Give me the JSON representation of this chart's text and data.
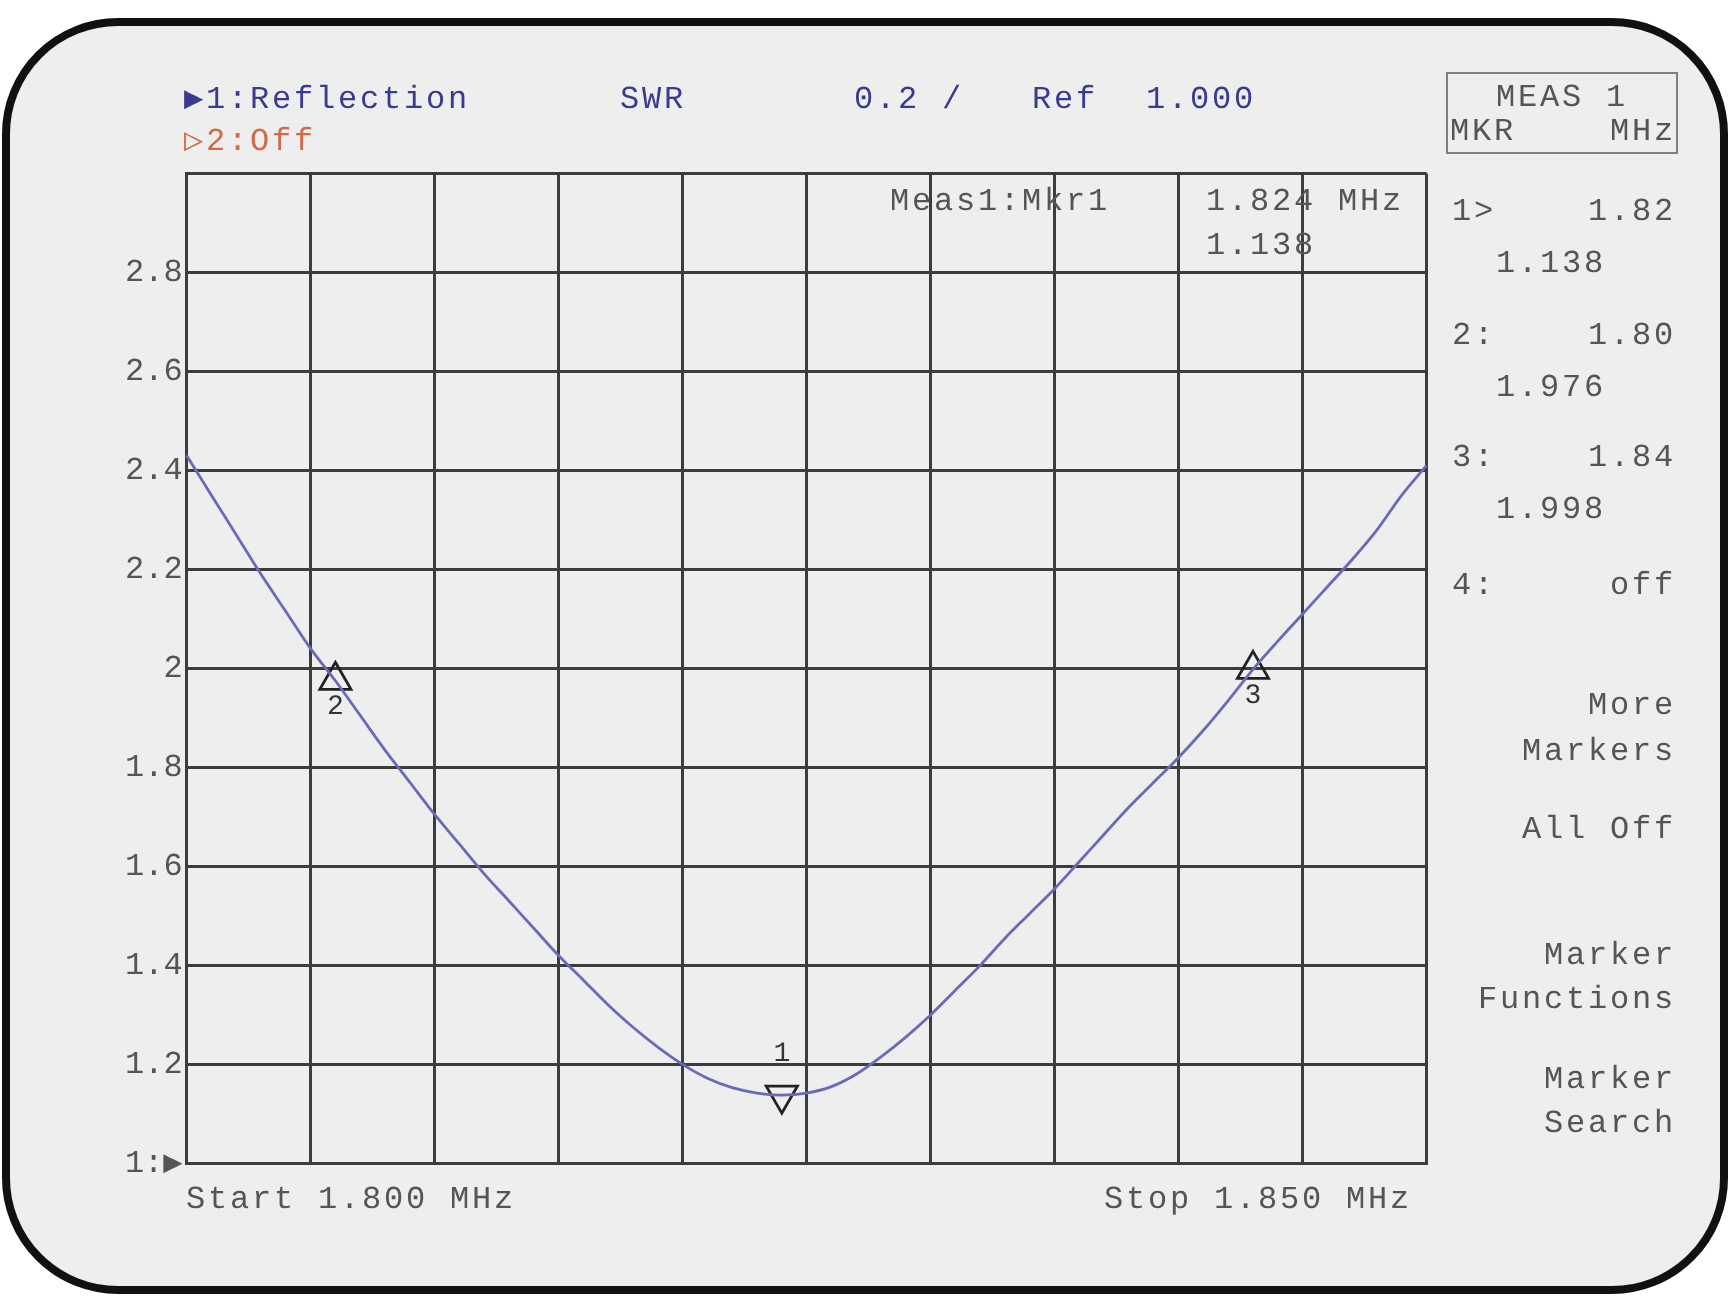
{
  "chart_data": {
    "type": "line",
    "categories": [
      null,
      null,
      null,
      null,
      null,
      null,
      null,
      null,
      null,
      null,
      null,
      null,
      null,
      null,
      null,
      null,
      null,
      null,
      null,
      null,
      null,
      null,
      null,
      null,
      null,
      null,
      null,
      null,
      null,
      null,
      null,
      null,
      null,
      null,
      null,
      null,
      null,
      null,
      null,
      null,
      null,
      null,
      null,
      null,
      null,
      null,
      null,
      null,
      null,
      null,
      null
    ],
    "series": [
      {
        "color": "#6a6ab8",
        "values": [
          2.43,
          2.35,
          2.27,
          2.19,
          2.115,
          2.04,
          1.975,
          1.905,
          1.835,
          1.77,
          1.705,
          1.645,
          1.585,
          1.53,
          1.475,
          1.42,
          1.37,
          1.32,
          1.275,
          1.235,
          1.2,
          1.172,
          1.153,
          1.142,
          1.138,
          1.142,
          1.155,
          1.18,
          1.215,
          1.255,
          1.3,
          1.35,
          1.4,
          1.455,
          1.505,
          1.555,
          1.61,
          1.665,
          1.72,
          1.77,
          1.82,
          1.875,
          1.935,
          1.998,
          2.055,
          2.11,
          2.165,
          2.22,
          2.28,
          2.35,
          2.41
        ]
      },
      {
        "name": "1",
        "type": "scatter",
        "marker": "triangle",
        "color": "#222222",
        "values": [
          null,
          null,
          null,
          null,
          null,
          null,
          null,
          null,
          null,
          null,
          null,
          null,
          null,
          null,
          null,
          null,
          null,
          null,
          null,
          null,
          null,
          null,
          null,
          null,
          1.138,
          null,
          null,
          null,
          null,
          null,
          null,
          null,
          null,
          null,
          null,
          null,
          null,
          null,
          null,
          null,
          null,
          null,
          null,
          null,
          null,
          null,
          null,
          null,
          null,
          null,
          null
        ]
      },
      {
        "name": "2",
        "type": "scatter",
        "marker": "triangle",
        "color": "#222222",
        "values": [
          null,
          null,
          null,
          null,
          null,
          null,
          1.976,
          null,
          null,
          null,
          null,
          null,
          null,
          null,
          null,
          null,
          null,
          null,
          null,
          null,
          null,
          null,
          null,
          null,
          null,
          null,
          null,
          null,
          null,
          null,
          null,
          null,
          null,
          null,
          null,
          null,
          null,
          null,
          null,
          null,
          null,
          null,
          null,
          null,
          null,
          null,
          null,
          null,
          null,
          null,
          null
        ]
      },
      {
        "name": "3",
        "type": "scatter",
        "marker": "triangle",
        "color": "#222222",
        "values": [
          null,
          null,
          null,
          null,
          null,
          null,
          null,
          null,
          null,
          null,
          null,
          null,
          null,
          null,
          null,
          null,
          null,
          null,
          null,
          null,
          null,
          null,
          null,
          null,
          null,
          null,
          null,
          null,
          null,
          null,
          null,
          null,
          null,
          null,
          null,
          null,
          null,
          null,
          null,
          null,
          null,
          null,
          null,
          1.998,
          null,
          null,
          null,
          null,
          null,
          null,
          null
        ]
      }
    ],
    "ylim": [
      1,
      3
    ],
    "yticks": [
      {
        "value": 1,
        "label": "1:▶"
      },
      1.2,
      1.4,
      1.6,
      1.8,
      2,
      2.2,
      2.4,
      2.6,
      2.8,
      {
        "value": 3,
        "label": null
      }
    ],
    "grid": true,
    "annotations": [
      "▶1:Reflection",
      "SWR",
      "0.2 /",
      "Ref 1.000",
      "▷2:Off",
      "Meas1:Mkr1",
      "1.824 MHz",
      "1.138",
      "MEAS 1",
      "MKR",
      "MHz",
      "1>",
      "1.82",
      "1.138",
      "2:",
      "1.80",
      "1.976",
      "3:",
      "1.84",
      "1.998",
      "4:",
      "off",
      "More Markers",
      "All Off",
      "Marker Functions",
      "Marker Search",
      "Start 1.800 MHz",
      "Stop 1.850 MHz"
    ]
  }
}
